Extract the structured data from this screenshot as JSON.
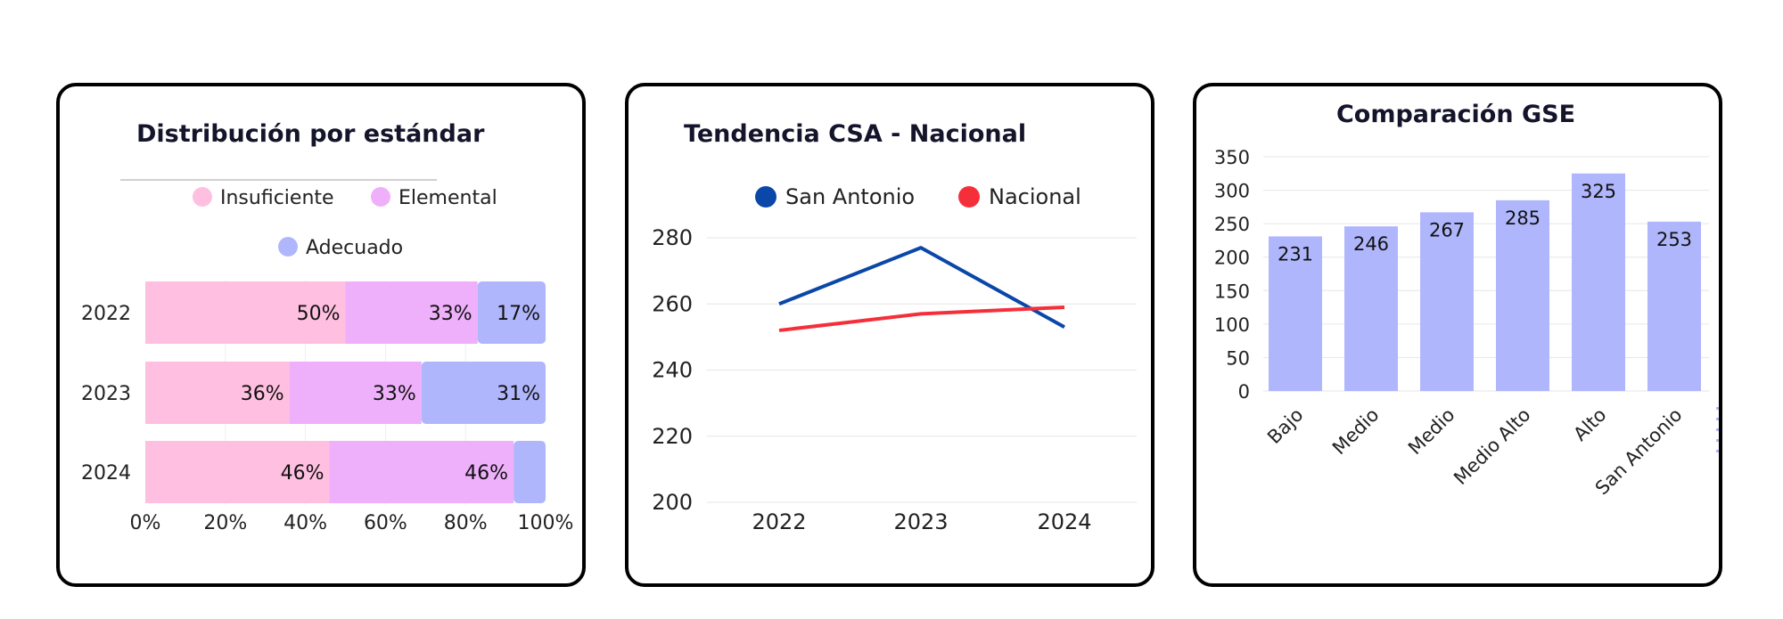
{
  "colors": {
    "insuficiente": "#ffbfe0",
    "elemental": "#eeb0fa",
    "adecuado": "#b0b6fb",
    "san_antonio": "#0a47a8",
    "nacional": "#f52f3a",
    "gse_bar": "#b0b6fb"
  },
  "chart_data": [
    {
      "type": "bar",
      "orientation": "horizontal",
      "stacked": true,
      "title": "Distribución por estándar",
      "categories": [
        "2022",
        "2023",
        "2024"
      ],
      "series": [
        {
          "name": "Insuficiente",
          "values": [
            50,
            36,
            46
          ],
          "labels": [
            "50%",
            "36%",
            "46%"
          ],
          "color": "#ffbfe0"
        },
        {
          "name": "Elemental",
          "values": [
            33,
            33,
            46
          ],
          "labels": [
            "33%",
            "33%",
            "46%"
          ],
          "color": "#eeb0fa"
        },
        {
          "name": "Adecuado",
          "values": [
            17,
            31,
            8
          ],
          "labels": [
            "17%",
            "31%",
            ""
          ],
          "color": "#b0b6fb"
        }
      ],
      "xlim": [
        0,
        100
      ],
      "xticks": [
        "0%",
        "20%",
        "40%",
        "60%",
        "80%",
        "100%"
      ],
      "legend": "top"
    },
    {
      "type": "line",
      "title": "Tendencia CSA - Nacional",
      "x": [
        "2022",
        "2023",
        "2024"
      ],
      "series": [
        {
          "name": "San Antonio",
          "values": [
            260,
            277,
            253
          ],
          "color": "#0a47a8"
        },
        {
          "name": "Nacional",
          "values": [
            252,
            257,
            259
          ],
          "color": "#f52f3a"
        }
      ],
      "ylim": [
        200,
        280
      ],
      "yticks": [
        "200",
        "220",
        "240",
        "260",
        "280"
      ],
      "grid": true,
      "legend": "top"
    },
    {
      "type": "bar",
      "title": "Comparación GSE",
      "categories": [
        "Bajo",
        "Medio",
        "Medio",
        "Medio Alto",
        "Alto",
        "San Antonio"
      ],
      "values": [
        231,
        246,
        267,
        285,
        325,
        253
      ],
      "labels": [
        "231",
        "246",
        "267",
        "285",
        "325",
        "253"
      ],
      "ylim": [
        0,
        350
      ],
      "yticks": [
        "0",
        "50",
        "100",
        "150",
        "200",
        "250",
        "300",
        "350"
      ],
      "grid": true,
      "color": "#b0b6fb"
    }
  ]
}
